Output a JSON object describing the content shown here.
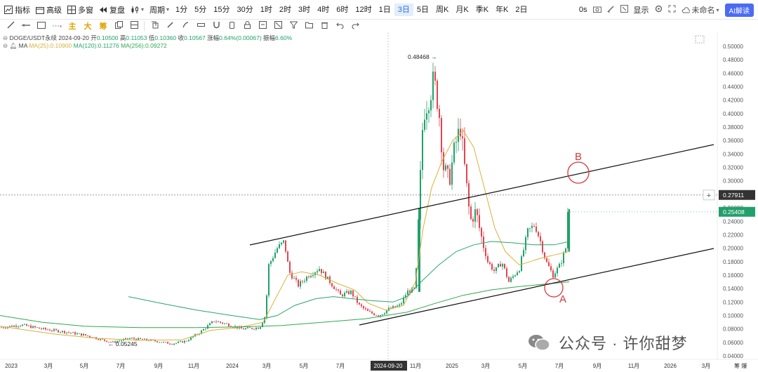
{
  "toolbar": {
    "indicator_label": "指标",
    "template_label": "高级",
    "multi_window_label": "多窗",
    "replay_label": "复盘",
    "period_label": "周期",
    "intervals": [
      "1分",
      "5分",
      "15分",
      "30分",
      "1时",
      "2时",
      "3时",
      "4时",
      "6时",
      "12时",
      "1日",
      "3日",
      "5日",
      "周K",
      "月K",
      "季K",
      "年K",
      "2日"
    ],
    "active_interval": "3日",
    "countdown": "0s",
    "display_label": "显示",
    "layout_name": "未命名",
    "ai_label": "AI解读"
  },
  "draw_tools": {
    "cn_labels": [
      "主",
      "大",
      "筹"
    ]
  },
  "info": {
    "symbol": "DOGE/USDT永续",
    "date": "2024-09-20",
    "open_label": "开",
    "open": "0.10500",
    "high_label": "高",
    "high": "0.11053",
    "low_label": "低",
    "low": "0.10360",
    "close_label": "收",
    "close": "0.10567",
    "change_label": "涨幅",
    "change": "0.64%(0.00067)",
    "amp_label": "振幅",
    "amp": "6.60%",
    "ma_title": "MA",
    "ma25": "MA(25):0.10900",
    "ma120": "MA(120):0.11276",
    "ma256": "MA(256):0.09272"
  },
  "colors": {
    "up": "#22a06b",
    "down": "#e0454f",
    "ma25": "#d8b13a",
    "ma120": "#2aa56d",
    "ma256": "#31a84f",
    "ann_red": "#d9363e"
  },
  "chart_data": {
    "type": "candlestick",
    "title": "",
    "y_axis_ticks": [
      "0.50000",
      "0.48000",
      "0.46000",
      "0.44000",
      "0.42000",
      "0.40000",
      "0.38000",
      "0.36000",
      "0.34000",
      "0.32000",
      "0.30000",
      "0.28000",
      "0.26000",
      "0.24000",
      "0.22000",
      "0.20000",
      "0.18000",
      "0.16000",
      "0.14000",
      "0.12000",
      "0.10000",
      "0.08000",
      "0.06000",
      "0.04000"
    ],
    "y_range": [
      0.04,
      0.5
    ],
    "x_axis_ticks": [
      "2023",
      "3月",
      "5月",
      "7月",
      "9月",
      "11月",
      "2024",
      "3月",
      "5月",
      "7月",
      "2024-09-20",
      "11月",
      "2025",
      "3月",
      "5月",
      "7月",
      "9月",
      "11月",
      "2026",
      "3月"
    ],
    "highlighted_x": "2024-09-20",
    "current_price_crosshair": "0.27911",
    "last_price_label": "0.25408",
    "max_annotation": "0.48468",
    "min_annotation": "0.05245",
    "labels": {
      "B": "B",
      "A": "A"
    },
    "series": [
      {
        "name": "MA(25)",
        "approx_values": [
          0.085,
          0.072,
          0.068,
          0.075,
          0.09,
          0.155,
          0.16,
          0.11,
          0.105,
          0.16,
          0.31,
          0.37,
          0.31,
          0.22,
          0.17,
          0.18,
          0.195
        ]
      },
      {
        "name": "MA(120)",
        "approx_values": [
          0.08,
          0.078,
          0.075,
          0.075,
          0.08,
          0.1,
          0.12,
          0.115,
          0.11,
          0.13,
          0.18,
          0.205,
          0.2,
          0.205,
          0.21
        ]
      },
      {
        "name": "MA(256)",
        "approx_values": [
          0.125,
          0.095,
          0.085,
          0.082,
          0.085,
          0.09,
          0.1,
          0.11,
          0.13,
          0.14,
          0.15,
          0.155
        ]
      }
    ]
  },
  "axis_corner": "筹 爆",
  "watermark": "公众号 · 许你甜梦"
}
